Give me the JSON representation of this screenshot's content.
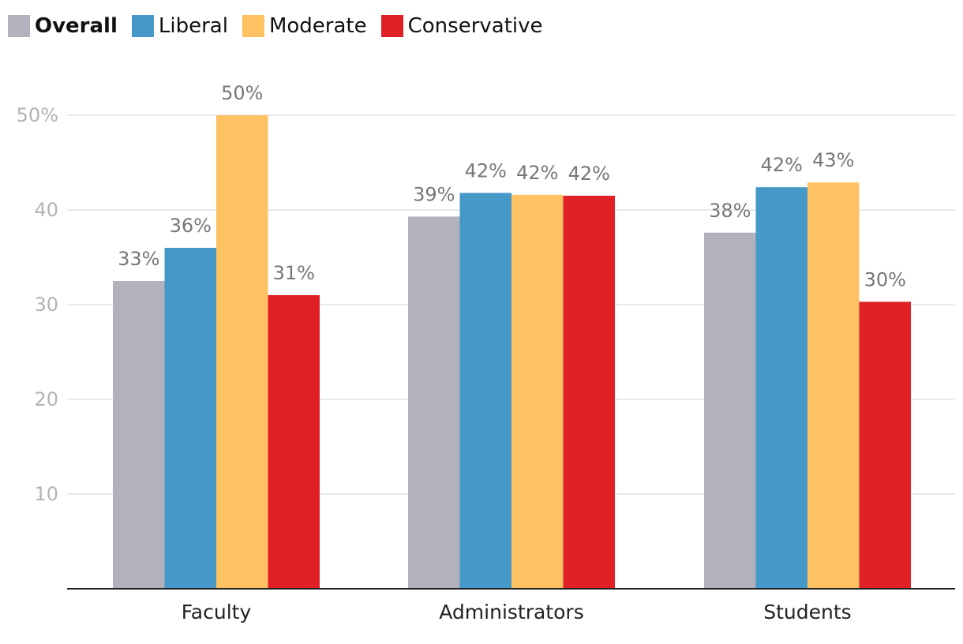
{
  "legend": {
    "overall": "Overall",
    "liberal": "Liberal",
    "moderate": "Moderate",
    "conservative": "Conservative"
  },
  "colors": {
    "overall": "#b3b1bb",
    "liberal": "#4698c8",
    "moderate": "#fec262",
    "conservative": "#e01f27",
    "grid": "#e3e3e3",
    "axis": "#222222"
  },
  "chart_data": {
    "type": "bar",
    "title": "",
    "xlabel": "",
    "ylabel": "",
    "ylim": [
      0,
      50
    ],
    "yticks": [
      {
        "value": 10,
        "label": "10"
      },
      {
        "value": 20,
        "label": "20"
      },
      {
        "value": 30,
        "label": "30"
      },
      {
        "value": 40,
        "label": "40"
      },
      {
        "value": 50,
        "label": "50%"
      }
    ],
    "grid": true,
    "legend_position": "top-left",
    "categories": [
      "Faculty",
      "Administrators",
      "Students"
    ],
    "series": [
      {
        "name": "Overall",
        "key": "overall",
        "values": [
          32.5,
          39.3,
          37.6
        ],
        "labels": [
          "33%",
          "39%",
          "38%"
        ]
      },
      {
        "name": "Liberal",
        "key": "liberal",
        "values": [
          36.0,
          41.8,
          42.4
        ],
        "labels": [
          "36%",
          "42%",
          "42%"
        ]
      },
      {
        "name": "Moderate",
        "key": "moderate",
        "values": [
          50.0,
          41.6,
          42.9
        ],
        "labels": [
          "50%",
          "42%",
          "43%"
        ]
      },
      {
        "name": "Conservative",
        "key": "conservative",
        "values": [
          31.0,
          41.5,
          30.3
        ],
        "labels": [
          "31%",
          "42%",
          "30%"
        ]
      }
    ]
  }
}
